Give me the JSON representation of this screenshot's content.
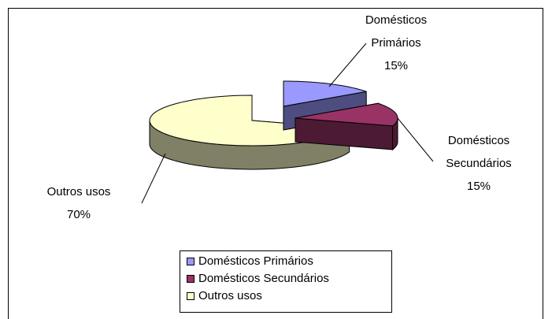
{
  "chart_data": {
    "type": "pie3d",
    "categories": [
      "Domésticos Primários",
      "Domésticos Secundários",
      "Outros usos"
    ],
    "values": [
      15,
      15,
      70
    ],
    "value_labels": [
      "15%",
      "15%",
      "70%"
    ],
    "colors": [
      "#9999ff",
      "#993366",
      "#ffffcc"
    ],
    "legend": "bottom"
  }
}
